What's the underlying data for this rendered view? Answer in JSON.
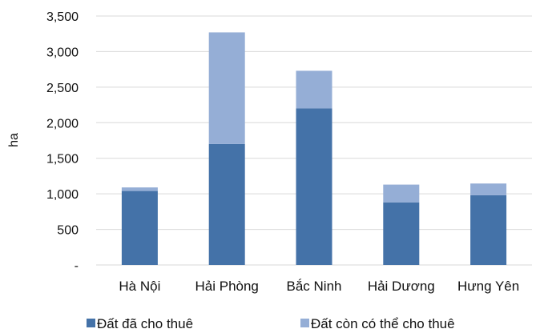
{
  "chart_data": {
    "type": "bar",
    "stacked": true,
    "title": "",
    "xlabel": "",
    "ylabel": "ha",
    "ylim": [
      0,
      3500
    ],
    "yticks": [
      0,
      500,
      1000,
      1500,
      2000,
      2500,
      3000,
      3500
    ],
    "ytick_labels": [
      "-",
      "500",
      "1,000",
      "1,500",
      "2,000",
      "2,500",
      "3,000",
      "3,500"
    ],
    "categories": [
      "Hà Nội",
      "Hải Phòng",
      "Bắc Ninh",
      "Hải Dương",
      "Hưng Yên"
    ],
    "series": [
      {
        "name": "Đất đã cho thuê",
        "color": "#4472a8",
        "values": [
          1040,
          1700,
          2200,
          880,
          980
        ]
      },
      {
        "name": "Đất còn có thể cho thuê",
        "color": "#95aed6",
        "values": [
          50,
          1570,
          530,
          250,
          165
        ]
      }
    ],
    "grid": "horizontal",
    "legend": "bottom"
  }
}
